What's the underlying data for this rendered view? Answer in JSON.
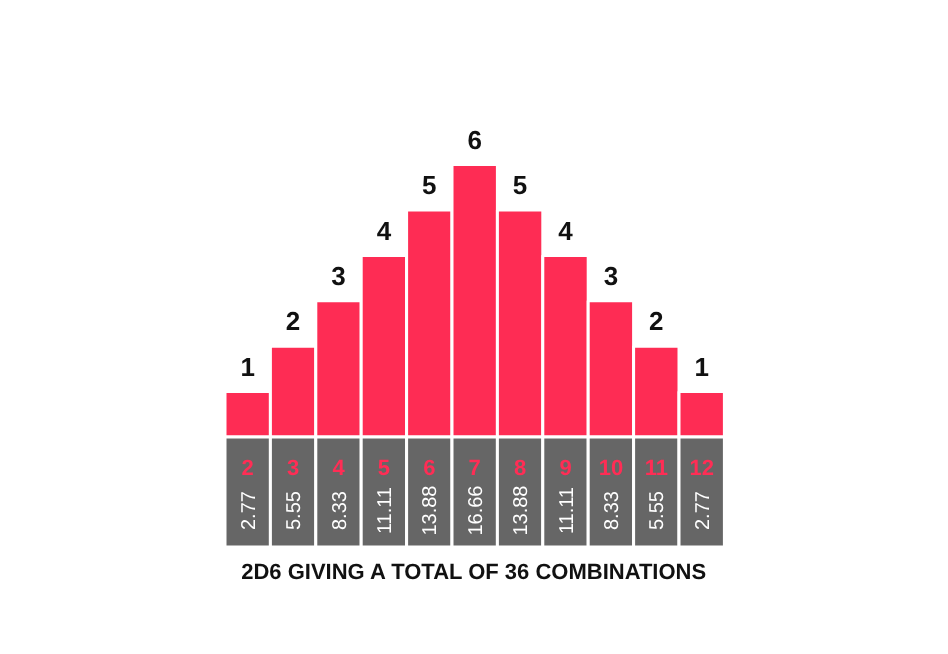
{
  "chart_data": {
    "type": "bar",
    "title": "2D6 GIVING A TOTAL OF 36 COMBINATIONS",
    "categories": [
      "2",
      "3",
      "4",
      "5",
      "6",
      "7",
      "8",
      "9",
      "10",
      "11",
      "12"
    ],
    "values": [
      1,
      2,
      3,
      4,
      5,
      6,
      5,
      4,
      3,
      2,
      1
    ],
    "color": "#fe2c54",
    "data_labels": true,
    "annotations": [
      "2.77",
      "5.55",
      "8.33",
      "11.11",
      "13.88",
      "16.66",
      "13.88",
      "11.11",
      "8.33",
      "5.55",
      "2.77"
    ]
  }
}
